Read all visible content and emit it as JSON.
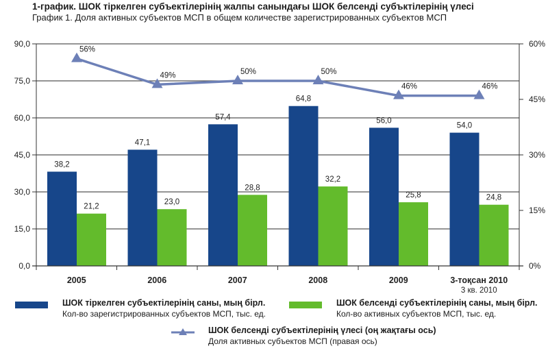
{
  "header": {
    "title": "1-график. ШОК тіркелген субъектілерінің жалпы санындағы ШОК белсенді субъктілерінің үлесі",
    "subtitle": "График 1. Доля активных субъектов МСП в общем количестве зарегистрированных субъектов МСП"
  },
  "colors": {
    "registered": "#17468a",
    "active": "#63bb2c",
    "share": "#6d80b7"
  },
  "chart_data": {
    "type": "bar",
    "title": "1-график. ШОК тіркелген субъектілерінің жалпы санындағы ШОК белсенді субъктілерінің үлесі",
    "subtitle": "График 1. Доля активных субъектов МСП в общем количестве зарегистрированных субъектов МСП",
    "categories": [
      "2005",
      "2006",
      "2007",
      "2008",
      "2009",
      "3-тоқсан 2010"
    ],
    "category_sublabels": [
      "",
      "",
      "",
      "",
      "",
      "3 кв. 2010"
    ],
    "series": [
      {
        "name": "ШОК тіркелген субъектілерінің саны, мың бірл.",
        "name_ru": "Кол-во зарегистрированных субъектов МСП, тыс. ед.",
        "type": "bar",
        "axis": "left",
        "values": [
          38.2,
          47.1,
          57.4,
          64.8,
          56.0,
          54.0
        ],
        "labels": [
          "38,2",
          "47,1",
          "57,4",
          "64,8",
          "56,0",
          "54,0"
        ]
      },
      {
        "name": "ШОК белсенді субъектілерінің саны, мың бірл.",
        "name_ru": "Кол-во активных субъектов МСП, тыс. ед.",
        "type": "bar",
        "axis": "left",
        "values": [
          21.2,
          23.0,
          28.8,
          32.2,
          25.8,
          24.8
        ],
        "labels": [
          "21,2",
          "23,0",
          "28,8",
          "32,2",
          "25,8",
          "24,8"
        ]
      },
      {
        "name": "ШОК белсенді субъектілерінің үлесі (оң жақтағы ось)",
        "name_ru": "Доля активных субъектов МСП (правая ось)",
        "type": "line",
        "marker": "triangle",
        "axis": "right",
        "values": [
          56,
          49,
          50,
          50,
          46,
          46
        ],
        "labels": [
          "56%",
          "49%",
          "50%",
          "50%",
          "46%",
          "46%"
        ]
      }
    ],
    "ylim": [
      0,
      90
    ],
    "yticks": [
      "0,0",
      "15,0",
      "30,0",
      "45,0",
      "60,0",
      "75,0",
      "90,0"
    ],
    "ytick_values": [
      0,
      15,
      30,
      45,
      60,
      75,
      90
    ],
    "y2lim": [
      0,
      60
    ],
    "y2ticks": [
      "0%",
      "15%",
      "30%",
      "45%",
      "60%"
    ],
    "y2tick_values": [
      0,
      15,
      30,
      45,
      60
    ],
    "xlabel": "",
    "ylabel": "",
    "y2label": "",
    "grid": true,
    "legend_position": "bottom"
  }
}
